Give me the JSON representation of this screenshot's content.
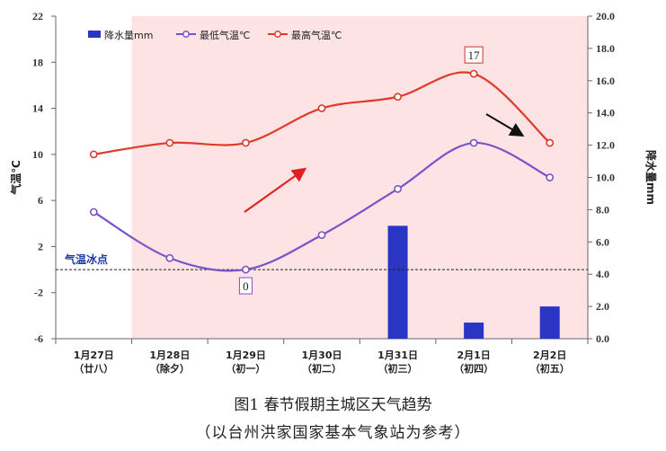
{
  "chart_data": {
    "type": "bar+line",
    "categories": [
      [
        "1月27日",
        "（廿八）"
      ],
      [
        "1月28日",
        "（除夕）"
      ],
      [
        "1月29日",
        "（初一）"
      ],
      [
        "1月30日",
        "（初二）"
      ],
      [
        "1月31日",
        "（初三）"
      ],
      [
        "2月1日",
        "（初四）"
      ],
      [
        "2月2日",
        "（初五）"
      ]
    ],
    "series": [
      {
        "name": "降水量mm",
        "type": "bar",
        "axis": "right",
        "color": "#2b35c4",
        "values": [
          0,
          0,
          0,
          0,
          7.0,
          1.0,
          2.0
        ]
      },
      {
        "name": "最低气温℃",
        "type": "line",
        "axis": "left",
        "color": "#7b52c8",
        "values": [
          5,
          1,
          0,
          3,
          7,
          11,
          8
        ]
      },
      {
        "name": "最高气温℃",
        "type": "line",
        "axis": "left",
        "color": "#e03a2a",
        "values": [
          10,
          11,
          11,
          14,
          15,
          17,
          11
        ]
      }
    ],
    "y_left": {
      "label": "气温℃",
      "ticks": [
        -6,
        -2,
        2,
        6,
        10,
        14,
        18,
        22
      ],
      "range": [
        -6,
        22
      ]
    },
    "y_right": {
      "label": "降水量mm",
      "ticks": [
        "0.0",
        "2.0",
        "4.0",
        "6.0",
        "8.0",
        "10.0",
        "12.0",
        "14.0",
        "16.0",
        "18.0",
        "20.0"
      ],
      "range": [
        0,
        20
      ]
    },
    "freezing_line": {
      "label": "气温冰点",
      "value": 0
    },
    "annotations": {
      "max_label": "17",
      "min_label": "0"
    },
    "legend_position": "top-left",
    "shading": {
      "color": "#fde3e3",
      "from_category_index": 1
    }
  },
  "caption": {
    "line1": "图1  春节假期主城区天气趋势",
    "line2": "（以台州洪家国家基本气象站为参考）"
  }
}
